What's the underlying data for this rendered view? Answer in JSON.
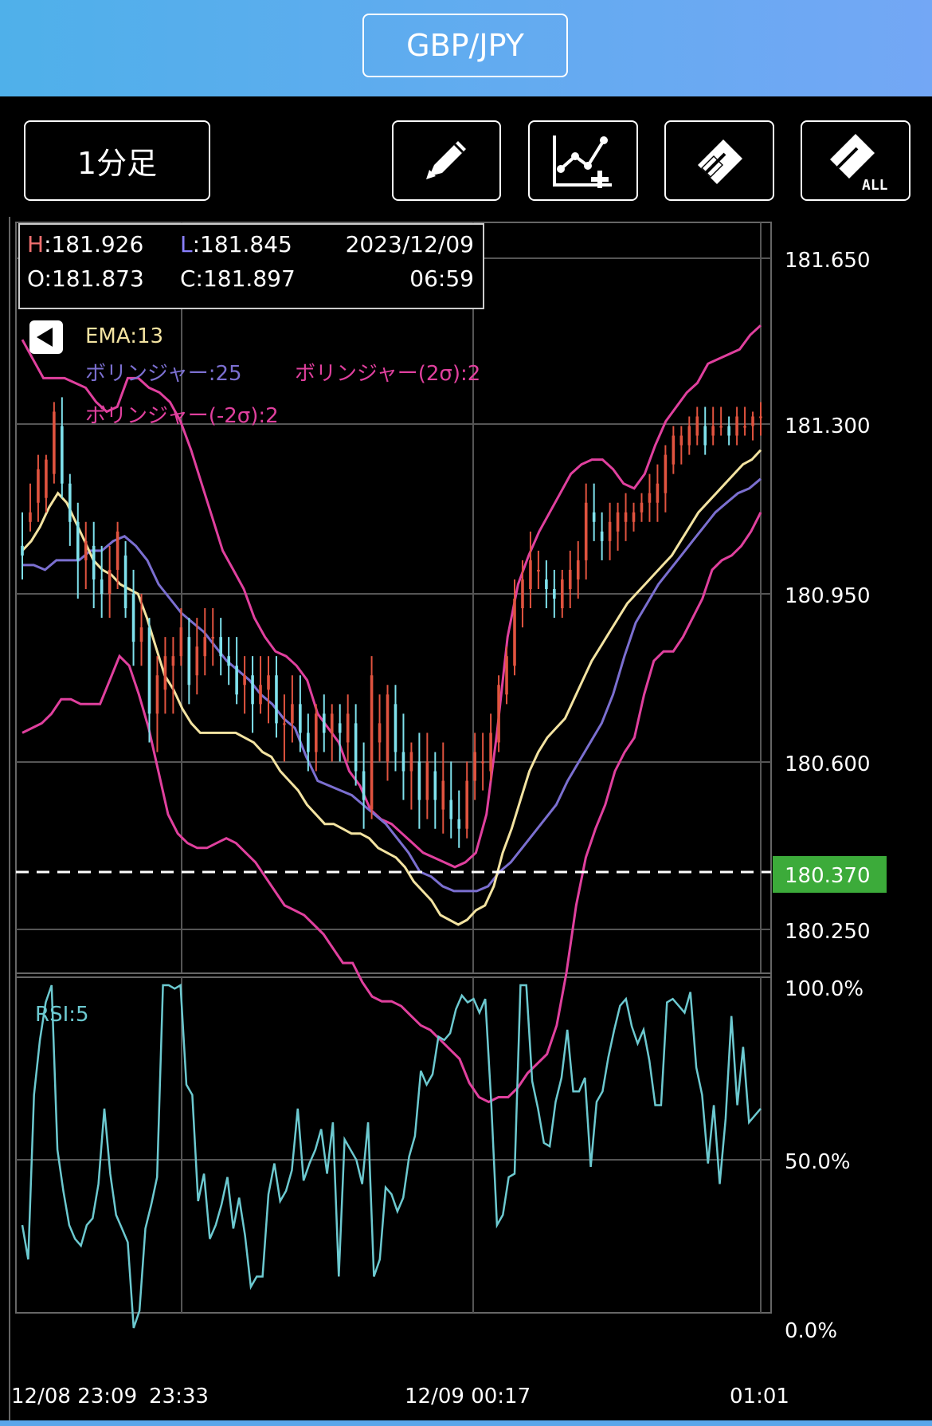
{
  "header": {
    "pair": "GBP/JPY"
  },
  "toolbar": {
    "timeframe": "1分足",
    "buttons": [
      "pencil-icon",
      "add-indicator-icon",
      "eraser-icon",
      "eraser-all-icon"
    ],
    "eraser_all_label": "ALL"
  },
  "ohlc": {
    "h_key": "H",
    "h_value": ":181.926",
    "l_key": "L",
    "l_value": ":181.845",
    "date": "2023/12/09",
    "o_text": "O:181.873",
    "c_text": "C:181.897",
    "time": "06:59"
  },
  "indicators": {
    "ema": "EMA:13",
    "bb_mid": "ボリンジャー:25",
    "bb_upper": "ボリンジャー(2σ):2",
    "bb_lower": "ボリンジャー(-2σ):2",
    "rsi": "RSI:5"
  },
  "colors": {
    "ema": "#f3e3a1",
    "bb_mid": "#7b6fd0",
    "bb_band": "#e0409e",
    "rsi": "#6cc9d0",
    "candle_up": "#e0533f",
    "candle_down": "#7fe1ec",
    "current_price_bg": "#3cab3a",
    "h_key": "#f07070",
    "l_key": "#8a80ff"
  },
  "price_axis": [
    "181.650",
    "181.300",
    "180.950",
    "180.600",
    "180.250"
  ],
  "current_price": "180.370",
  "rsi_axis": [
    "100.0%",
    "50.0%",
    "0.0%"
  ],
  "time_axis": [
    "12/08 23:09",
    "23:33",
    "12/09 00:17",
    "01:01"
  ],
  "chart_data": {
    "type": "candlestick",
    "ylim": [
      180.196,
      181.76
    ],
    "current_price": 180.37,
    "ema": [
      181.04,
      181.06,
      181.09,
      181.13,
      181.16,
      181.14,
      181.1,
      181.06,
      181.02,
      181.0,
      180.99,
      180.97,
      180.96,
      180.95,
      180.9,
      180.84,
      180.78,
      180.75,
      180.71,
      180.68,
      180.66,
      180.66,
      180.66,
      180.66,
      180.66,
      180.65,
      180.64,
      180.62,
      180.61,
      180.58,
      180.56,
      180.54,
      180.51,
      180.49,
      180.47,
      180.47,
      180.46,
      180.45,
      180.45,
      180.44,
      180.42,
      180.41,
      180.4,
      180.38,
      180.35,
      180.33,
      180.31,
      180.28,
      180.27,
      180.26,
      180.27,
      180.29,
      180.3,
      180.34,
      180.41,
      180.46,
      180.52,
      180.58,
      180.62,
      180.65,
      180.67,
      180.69,
      180.73,
      180.77,
      180.81,
      180.84,
      180.87,
      180.9,
      180.93,
      180.95,
      180.97,
      180.99,
      181.01,
      181.03,
      181.06,
      181.09,
      181.12,
      181.14,
      181.16,
      181.18,
      181.2,
      181.22,
      181.23,
      181.25
    ],
    "bb_mid": [
      181.01,
      181.01,
      181.0,
      181.02,
      181.02,
      181.02,
      181.04,
      181.04,
      181.06,
      181.07,
      181.05,
      181.02,
      180.97,
      180.94,
      180.91,
      180.89,
      180.87,
      180.84,
      180.81,
      180.79,
      180.77,
      180.74,
      180.72,
      180.69,
      180.67,
      180.61,
      180.56,
      180.55,
      180.54,
      180.53,
      180.51,
      180.49,
      180.47,
      180.44,
      180.41,
      180.37,
      180.36,
      180.34,
      180.33,
      180.33,
      180.33,
      180.34,
      180.37,
      180.39,
      180.42,
      180.45,
      180.48,
      180.51,
      180.56,
      180.6,
      180.64,
      180.68,
      180.74,
      180.82,
      180.89,
      180.93,
      180.97,
      181.0,
      181.03,
      181.06,
      181.09,
      181.12,
      181.14,
      181.16,
      181.17,
      181.19
    ],
    "bb_upper": [
      181.48,
      181.44,
      181.4,
      181.4,
      181.4,
      181.39,
      181.38,
      181.35,
      181.33,
      181.34,
      181.4,
      181.4,
      181.38,
      181.37,
      181.35,
      181.31,
      181.25,
      181.18,
      181.11,
      181.04,
      181.0,
      180.96,
      180.9,
      180.86,
      180.83,
      180.82,
      180.8,
      180.77,
      180.7,
      180.67,
      180.64,
      180.58,
      180.55,
      180.5,
      180.48,
      180.47,
      180.45,
      180.43,
      180.41,
      180.4,
      180.39,
      180.38,
      180.39,
      180.41,
      180.49,
      180.66,
      180.86,
      180.97,
      181.03,
      181.08,
      181.12,
      181.16,
      181.2,
      181.22,
      181.23,
      181.23,
      181.21,
      181.18,
      181.17,
      181.2,
      181.26,
      181.31,
      181.34,
      181.37,
      181.39,
      181.43,
      181.44,
      181.45,
      181.46,
      181.49,
      181.51
    ],
    "bb_lower": [
      180.66,
      180.67,
      180.68,
      180.7,
      180.73,
      180.73,
      180.72,
      180.72,
      180.72,
      180.77,
      180.82,
      180.8,
      180.74,
      180.67,
      180.58,
      180.49,
      180.45,
      180.43,
      180.42,
      180.42,
      180.43,
      180.44,
      180.43,
      180.41,
      180.39,
      180.36,
      180.33,
      180.3,
      180.29,
      180.28,
      180.26,
      180.24,
      180.21,
      180.18,
      180.18,
      180.14,
      180.11,
      180.1,
      180.1,
      180.09,
      180.07,
      180.05,
      180.04,
      180.02,
      180.0,
      179.98,
      179.93,
      179.9,
      179.89,
      179.9,
      179.9,
      179.92,
      179.95,
      179.97,
      179.99,
      180.05,
      180.16,
      180.3,
      180.4,
      180.46,
      180.51,
      180.58,
      180.62,
      180.65,
      180.74,
      180.81,
      180.83,
      180.83,
      180.86,
      180.9,
      180.94,
      181.0,
      181.02,
      181.03,
      181.05,
      181.08,
      181.12
    ],
    "candles": [
      [
        181.05,
        181.12,
        180.98,
        181.03
      ],
      [
        181.1,
        181.18,
        181.08,
        181.12
      ],
      [
        181.14,
        181.24,
        181.1,
        181.21
      ],
      [
        181.15,
        181.24,
        181.12,
        181.23
      ],
      [
        181.2,
        181.35,
        181.18,
        181.33
      ],
      [
        181.3,
        181.36,
        181.15,
        181.18
      ],
      [
        181.18,
        181.2,
        181.05,
        181.1
      ],
      [
        181.1,
        181.14,
        180.94,
        181.02
      ],
      [
        181.02,
        181.1,
        180.96,
        181.06
      ],
      [
        181.05,
        181.1,
        180.92,
        180.98
      ],
      [
        180.98,
        181.05,
        180.9,
        180.95
      ],
      [
        180.95,
        181.05,
        180.9,
        181.0
      ],
      [
        181.0,
        181.1,
        180.96,
        181.08
      ],
      [
        181.03,
        181.06,
        180.9,
        180.92
      ],
      [
        180.95,
        181.0,
        180.8,
        180.85
      ],
      [
        180.85,
        180.95,
        180.8,
        180.88
      ],
      [
        180.88,
        180.9,
        180.64,
        180.7
      ],
      [
        180.7,
        180.82,
        180.62,
        180.78
      ],
      [
        180.75,
        180.86,
        180.7,
        180.82
      ],
      [
        180.8,
        180.86,
        180.7,
        180.82
      ],
      [
        180.82,
        180.92,
        180.8,
        180.88
      ],
      [
        180.86,
        180.9,
        180.72,
        180.76
      ],
      [
        180.78,
        180.9,
        180.74,
        180.84
      ],
      [
        180.82,
        180.92,
        180.78,
        180.86
      ],
      [
        180.86,
        180.92,
        180.8,
        180.86
      ],
      [
        180.86,
        180.9,
        180.78,
        180.82
      ],
      [
        180.82,
        180.86,
        180.76,
        180.8
      ],
      [
        180.8,
        180.86,
        180.72,
        180.74
      ],
      [
        180.76,
        180.82,
        180.7,
        180.78
      ],
      [
        180.78,
        180.82,
        180.66,
        180.72
      ],
      [
        180.72,
        180.82,
        180.7,
        180.76
      ],
      [
        180.75,
        180.82,
        180.68,
        180.78
      ],
      [
        180.78,
        180.82,
        180.65,
        180.68
      ],
      [
        180.68,
        180.74,
        180.6,
        180.68
      ],
      [
        180.68,
        180.78,
        180.64,
        180.72
      ],
      [
        180.72,
        180.78,
        180.62,
        180.66
      ],
      [
        180.66,
        180.7,
        180.58,
        180.62
      ],
      [
        180.62,
        180.72,
        180.58,
        180.7
      ],
      [
        180.7,
        180.74,
        180.62,
        180.66
      ],
      [
        180.66,
        180.72,
        180.6,
        180.7
      ],
      [
        180.68,
        180.72,
        180.6,
        180.66
      ],
      [
        180.64,
        180.74,
        180.6,
        180.7
      ],
      [
        180.68,
        180.72,
        180.55,
        180.58
      ],
      [
        180.58,
        180.64,
        180.46,
        180.52
      ],
      [
        180.5,
        180.82,
        180.48,
        180.78
      ],
      [
        180.64,
        180.74,
        180.6,
        180.68
      ],
      [
        180.6,
        180.76,
        180.56,
        180.74
      ],
      [
        180.72,
        180.76,
        180.58,
        180.62
      ],
      [
        180.62,
        180.7,
        180.52,
        180.58
      ],
      [
        180.58,
        180.64,
        180.5,
        180.62
      ],
      [
        180.6,
        180.66,
        180.46,
        180.52
      ],
      [
        180.52,
        180.66,
        180.48,
        180.6
      ],
      [
        180.58,
        180.62,
        180.46,
        180.52
      ],
      [
        180.5,
        180.64,
        180.45,
        180.56
      ],
      [
        180.52,
        180.6,
        180.44,
        180.48
      ],
      [
        180.48,
        180.54,
        180.42,
        180.46
      ],
      [
        180.46,
        180.6,
        180.44,
        180.56
      ],
      [
        180.56,
        180.66,
        180.52,
        180.62
      ],
      [
        180.6,
        180.66,
        180.54,
        180.6
      ],
      [
        180.58,
        180.7,
        180.56,
        180.66
      ],
      [
        180.64,
        180.78,
        180.62,
        180.76
      ],
      [
        180.74,
        180.84,
        180.72,
        180.82
      ],
      [
        180.8,
        180.98,
        180.78,
        180.94
      ],
      [
        180.92,
        181.02,
        180.88,
        180.98
      ],
      [
        180.96,
        181.08,
        180.92,
        181.02
      ],
      [
        181.0,
        181.04,
        180.96,
        181.0
      ],
      [
        180.98,
        181.02,
        180.92,
        180.96
      ],
      [
        180.96,
        181.0,
        180.9,
        180.94
      ],
      [
        180.92,
        181.0,
        180.9,
        180.98
      ],
      [
        180.96,
        181.04,
        180.92,
        181.0
      ],
      [
        180.98,
        181.06,
        180.94,
        181.02
      ],
      [
        181.02,
        181.18,
        180.98,
        181.14
      ],
      [
        181.12,
        181.18,
        181.06,
        181.1
      ],
      [
        181.08,
        181.12,
        181.02,
        181.06
      ],
      [
        181.06,
        181.14,
        181.02,
        181.1
      ],
      [
        181.08,
        181.14,
        181.04,
        181.12
      ],
      [
        181.1,
        181.16,
        181.06,
        181.12
      ],
      [
        181.1,
        181.14,
        181.08,
        181.12
      ],
      [
        181.12,
        181.16,
        181.1,
        181.14
      ],
      [
        181.14,
        181.2,
        181.1,
        181.16
      ],
      [
        181.14,
        181.22,
        181.1,
        181.18
      ],
      [
        181.16,
        181.26,
        181.12,
        181.24
      ],
      [
        181.22,
        181.3,
        181.2,
        181.28
      ],
      [
        181.26,
        181.3,
        181.22,
        181.28
      ],
      [
        181.26,
        181.32,
        181.24,
        181.3
      ],
      [
        181.28,
        181.34,
        181.26,
        181.32
      ],
      [
        181.3,
        181.34,
        181.24,
        181.26
      ],
      [
        181.28,
        181.34,
        181.26,
        181.3
      ],
      [
        181.3,
        181.34,
        181.28,
        181.3
      ],
      [
        181.3,
        181.32,
        181.26,
        181.28
      ],
      [
        181.28,
        181.34,
        181.26,
        181.32
      ],
      [
        181.3,
        181.34,
        181.28,
        181.3
      ],
      [
        181.3,
        181.33,
        181.27,
        181.32
      ],
      [
        181.32,
        181.35,
        181.28,
        181.32
      ]
    ],
    "rsi": [
      30,
      20,
      68,
      84,
      95,
      100,
      52,
      40,
      30,
      26,
      24,
      30,
      32,
      42,
      64,
      45,
      33,
      29,
      25,
      0,
      5,
      29,
      36,
      44,
      100,
      100,
      99,
      100,
      71,
      68,
      37,
      45,
      26,
      30,
      36,
      44,
      29,
      38,
      27,
      12,
      15,
      15,
      39,
      48,
      37,
      40,
      46,
      64,
      43,
      48,
      52,
      58,
      45,
      60,
      15,
      55,
      52,
      49,
      42,
      60,
      15,
      20,
      41,
      39,
      34,
      38,
      50,
      56,
      75,
      71,
      74,
      85,
      84,
      86,
      93,
      97,
      95,
      96,
      92,
      96,
      66,
      30,
      33,
      44,
      45,
      100,
      100,
      72,
      64,
      54,
      53,
      66,
      73,
      87,
      69,
      69,
      73,
      47,
      66,
      69,
      79,
      87,
      94,
      96,
      88,
      83,
      87,
      78,
      65,
      65,
      95,
      96,
      94,
      92,
      98,
      76,
      68,
      48,
      65,
      42,
      61,
      91,
      65,
      82,
      60,
      62,
      64
    ]
  }
}
